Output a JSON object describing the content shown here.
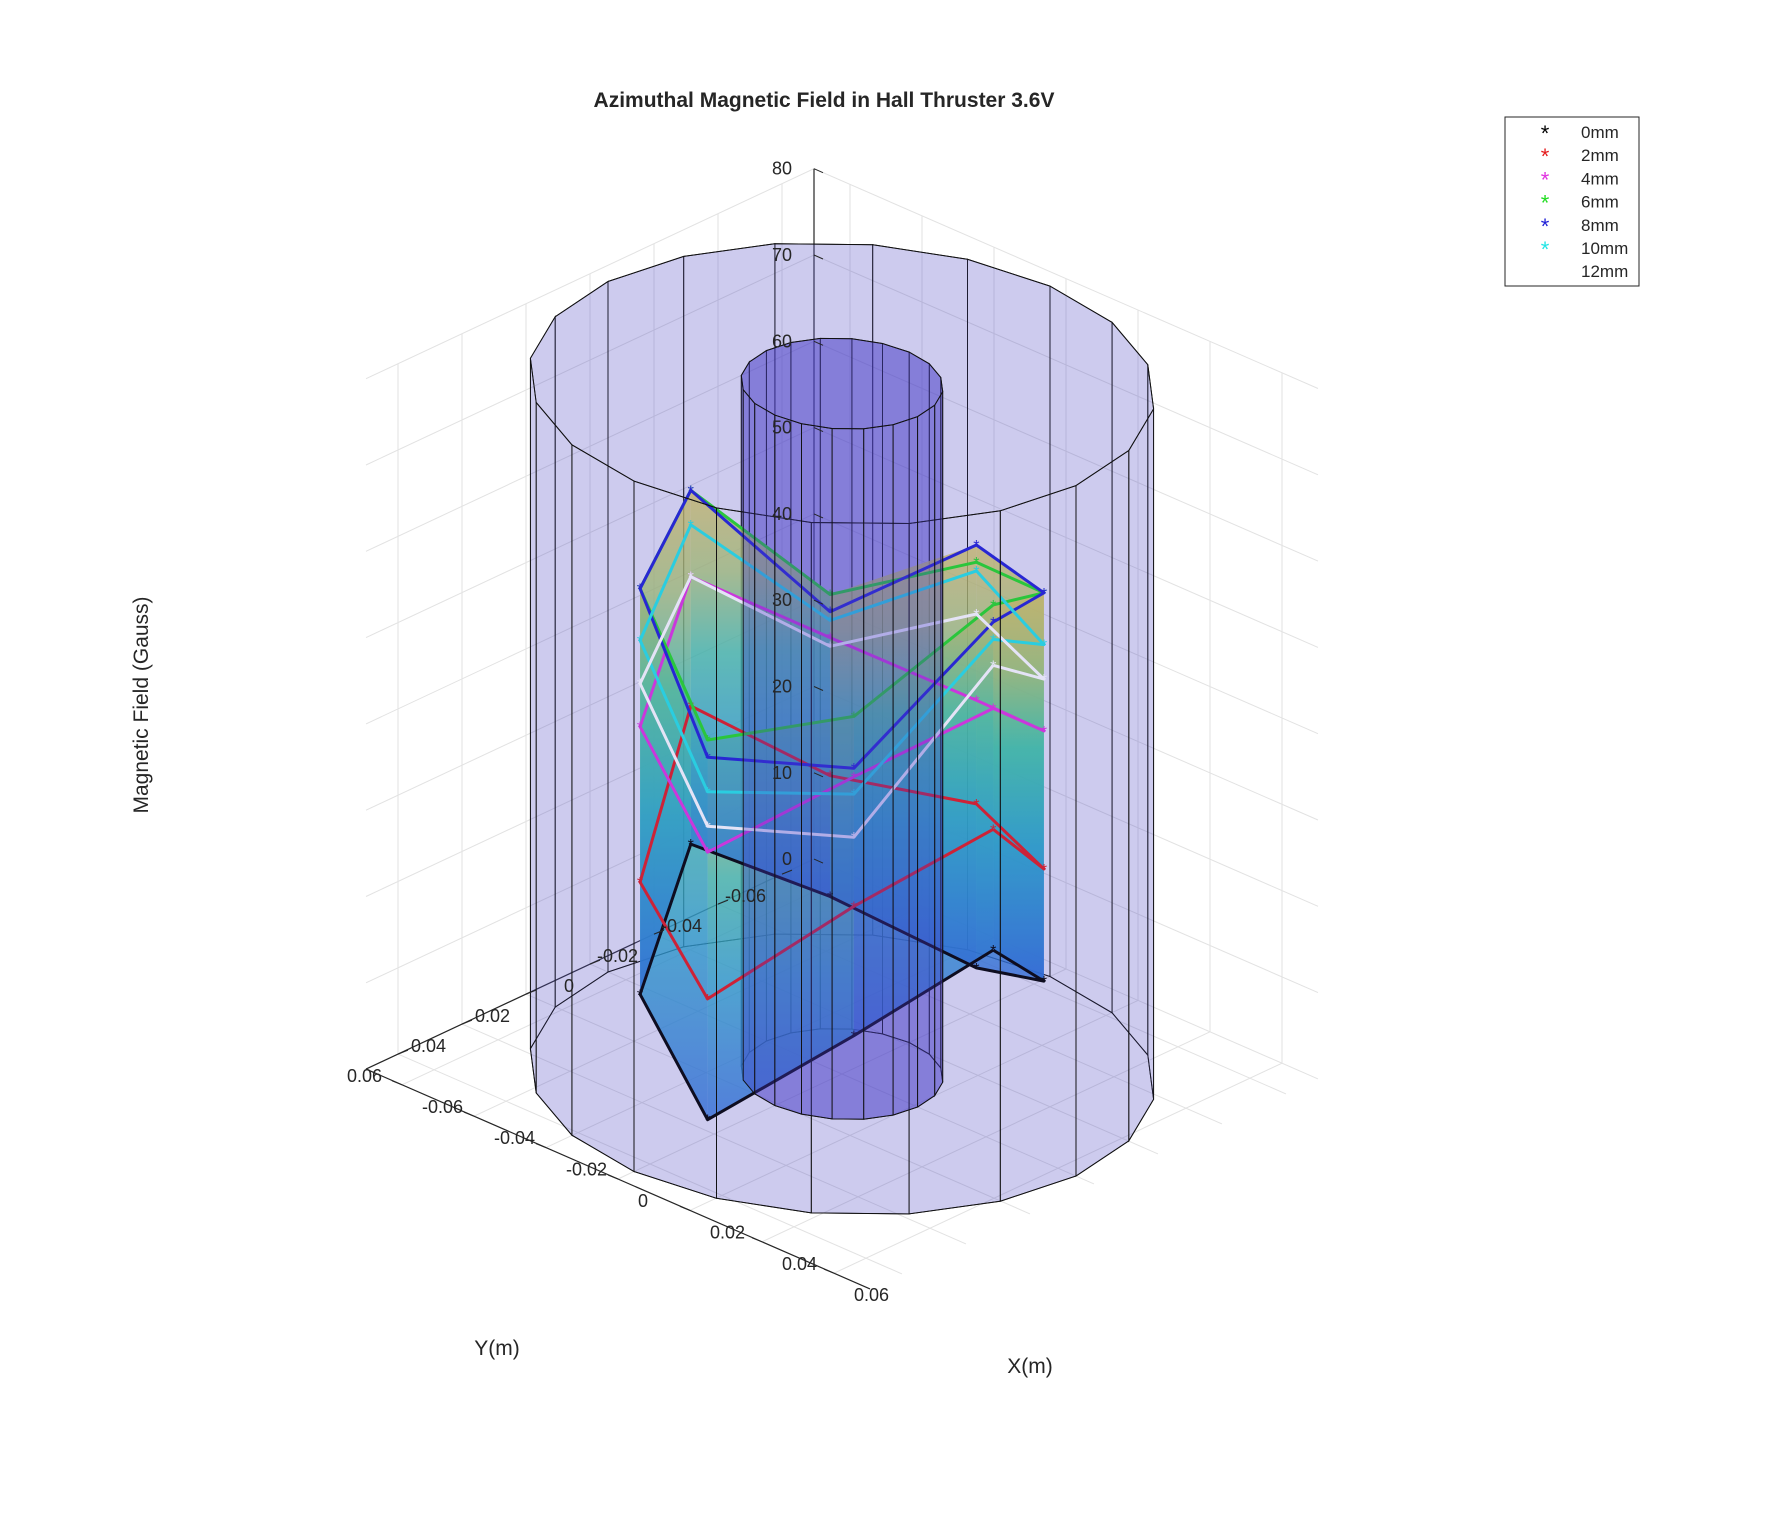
{
  "chart_data": {
    "type": "3d-surface",
    "title": "Azimuthal Magnetic Field in Hall Thruster 3.6V",
    "xlabel": "X(m)",
    "ylabel": "Y(m)",
    "zlabel": "Magnetic Field (Gauss)",
    "xlim": [
      -0.07,
      0.07
    ],
    "ylim": [
      -0.07,
      0.07
    ],
    "zlim": [
      0,
      80
    ],
    "x_ticks": [
      "-0.06",
      "-0.04",
      "-0.02",
      "0",
      "0.02",
      "0.04",
      "0.06"
    ],
    "y_ticks": [
      "-0.06",
      "-0.04",
      "-0.02",
      "0",
      "0.02",
      "0.04",
      "0.06"
    ],
    "z_ticks": [
      "0",
      "10",
      "20",
      "30",
      "40",
      "50",
      "60",
      "70",
      "80"
    ],
    "grid": true,
    "legend_position": "top-right",
    "geometry": {
      "outer_cylinder_radius_m": 0.065,
      "inner_cylinder_radius_m": 0.021,
      "measurement_radius_m": 0.042,
      "cylinder_height_gauss_axis": 80
    },
    "angles_deg": [
      0,
      45,
      90,
      135,
      180,
      225,
      270,
      315
    ],
    "series": [
      {
        "name": "0mm",
        "color": "#000000",
        "values": [
          22,
          15,
          2,
          9,
          19,
          10,
          5,
          11
        ]
      },
      {
        "name": "2mm",
        "color": "#e41a1c",
        "values": [
          36,
          30,
          16,
          22,
          35,
          24,
          24,
          24
        ]
      },
      {
        "name": "4mm",
        "color": "#e033e0",
        "values": [
          50,
          45,
          33,
          40,
          50,
          40,
          36,
          40
        ]
      },
      {
        "name": "6mm",
        "color": "#22dd22",
        "values": [
          62,
          52,
          46,
          56,
          60,
          45,
          52,
          56
        ]
      },
      {
        "name": "8mm",
        "color": "#1f1fd6",
        "values": [
          60,
          46,
          44,
          56,
          60,
          43,
          54,
          56
        ]
      },
      {
        "name": "10mm",
        "color": "#22e5e5",
        "values": [
          58,
          43,
          40,
          50,
          56,
          42,
          51,
          50
        ]
      },
      {
        "name": "12mm",
        "color": "#ffffff",
        "values": [
          55,
          38,
          36,
          45,
          50,
          39,
          46,
          46
        ]
      }
    ]
  }
}
